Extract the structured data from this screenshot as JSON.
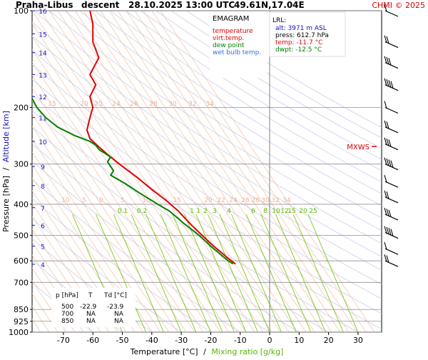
{
  "header": {
    "station": "Praha-Libus",
    "mode": "descent",
    "datetime": "28.10.2025 13:00 UTC",
    "coords": "49.61N,17.04E",
    "copyright": "CHMI © 2025"
  },
  "legend": {
    "title": "EMAGRAM",
    "items": [
      {
        "label": "temperature",
        "color": "#e00000"
      },
      {
        "label": "virt.temp.",
        "color": "#e00000"
      },
      {
        "label": "dew point",
        "color": "#008000"
      },
      {
        "label": "wet bulb temp.",
        "color": "#3070e0"
      }
    ]
  },
  "lrl": {
    "title": "LRL:",
    "alt": "alt: 3971 m ASL",
    "press": "press: 612.7 hPa",
    "temp": "temp: -11.7 °C",
    "dwpt": "dwpt: -12.5 °C"
  },
  "mxws_label": "MXWS",
  "table": {
    "headers": [
      "p [hPa]",
      "T",
      "Td [°C]"
    ],
    "rows": [
      [
        "500",
        "-22.9",
        "-23.9"
      ],
      [
        "700",
        "NA",
        "NA"
      ],
      [
        "850",
        "NA",
        "NA"
      ]
    ]
  },
  "axes": {
    "ylabel_pressure": "Pressure [hPa]",
    "ylabel_sep": "/",
    "ylabel_altitude": "Altitude [km]",
    "xlabel_temp": "Temperature [°C]",
    "xlabel_sep": "/",
    "xlabel_mix": "Mixing ratio [g/kg]"
  },
  "colors": {
    "temperature": "#e00000",
    "dewpoint": "#008000",
    "wetbulb": "#3070e0",
    "altitude": "#1010c0",
    "mixing": "#55b800",
    "isotherm": "#f5c0a0",
    "adiabat": "#c8cdf0",
    "grid": "#909090"
  },
  "chart_data": {
    "type": "line",
    "title": "Praha-Libus descent 28.10.2025 13:00 UTC 49.61N,17.04E",
    "xlabel": "Temperature [°C] / Mixing ratio [g/kg]",
    "ylabel": "Pressure [hPa] / Altitude [km]",
    "xlim": [
      -80,
      35
    ],
    "ylim": [
      1000,
      100
    ],
    "y_scale": "log",
    "x_ticks": [
      -70,
      -60,
      -50,
      -40,
      -30,
      -20,
      -10,
      0,
      10,
      20,
      30
    ],
    "pressure_ticks": [
      100,
      200,
      300,
      400,
      500,
      600,
      700,
      850,
      925,
      1000
    ],
    "altitude_ticks": [
      {
        "km": 16,
        "p": 100
      },
      {
        "km": 15,
        "p": 118
      },
      {
        "km": 14,
        "p": 135
      },
      {
        "km": 13,
        "p": 158
      },
      {
        "km": 12,
        "p": 185
      },
      {
        "km": 11,
        "p": 215
      },
      {
        "km": 10,
        "p": 255
      },
      {
        "km": 9,
        "p": 305
      },
      {
        "km": 8,
        "p": 350
      },
      {
        "km": 7,
        "p": 410
      },
      {
        "km": 6,
        "p": 465
      },
      {
        "km": 5,
        "p": 540
      },
      {
        "km": 4,
        "p": 615
      }
    ],
    "isotherm_labels_200": [
      -15,
      -20,
      -25,
      -24,
      -26,
      -28,
      -30,
      -32,
      -34
    ],
    "isotherm_labels_375": [
      -10,
      -5,
      0,
      5,
      10,
      15,
      20,
      22,
      24,
      26,
      28,
      30,
      32,
      34
    ],
    "mixing_ratio_labels": [
      "0.1",
      "0.2",
      "1",
      "1",
      "2",
      "3",
      "4",
      "6",
      "8",
      "10",
      "12",
      "15",
      "20",
      "25"
    ],
    "series": [
      {
        "name": "temperature",
        "color": "#e00000",
        "points": [
          [
            -11.7,
            612.7
          ],
          [
            -13,
            600
          ],
          [
            -15,
            580
          ],
          [
            -19,
            540
          ],
          [
            -22.9,
            500
          ],
          [
            -27,
            460
          ],
          [
            -31,
            420
          ],
          [
            -35,
            390
          ],
          [
            -40,
            360
          ],
          [
            -45,
            330
          ],
          [
            -51,
            300
          ],
          [
            -55,
            280
          ],
          [
            -58,
            265
          ],
          [
            -61,
            250
          ],
          [
            -62,
            235
          ],
          [
            -61,
            215
          ],
          [
            -60,
            200
          ],
          [
            -61,
            185
          ],
          [
            -59,
            170
          ],
          [
            -61,
            158
          ],
          [
            -58,
            140
          ],
          [
            -60,
            125
          ],
          [
            -60,
            110
          ],
          [
            -61,
            100
          ]
        ]
      },
      {
        "name": "dew point",
        "color": "#008000",
        "points": [
          [
            -12.5,
            612.7
          ],
          [
            -14,
            600
          ],
          [
            -16,
            580
          ],
          [
            -20,
            540
          ],
          [
            -23.9,
            500
          ],
          [
            -29,
            460
          ],
          [
            -34,
            420
          ],
          [
            -38,
            400
          ],
          [
            -44,
            370
          ],
          [
            -49,
            345
          ],
          [
            -54,
            325
          ],
          [
            -53,
            315
          ],
          [
            -55,
            295
          ],
          [
            -54,
            285
          ],
          [
            -58,
            270
          ],
          [
            -59,
            262
          ],
          [
            -61,
            255
          ],
          [
            -66,
            245
          ],
          [
            -72,
            230
          ],
          [
            -76,
            215
          ],
          [
            -79,
            200
          ],
          [
            -81,
            185
          ],
          [
            -82,
            170
          ]
        ]
      }
    ],
    "wind_barbs_pressure": [
      100,
      125,
      145,
      170,
      200,
      230,
      260,
      300,
      340,
      380,
      430,
      490,
      550,
      600
    ]
  }
}
